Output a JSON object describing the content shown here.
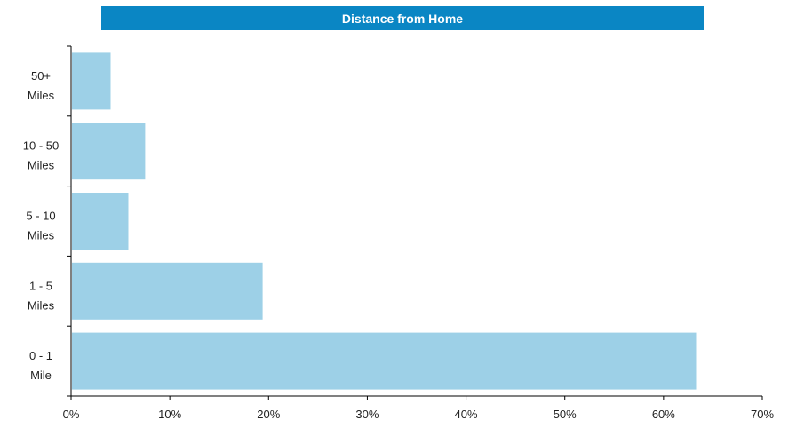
{
  "chart_data": {
    "type": "bar",
    "orientation": "horizontal",
    "title": "Distance from Home",
    "categories": [
      "50+\nMiles",
      "10 - 50\nMiles",
      "5 - 10\nMiles",
      "1 - 5\nMiles",
      "0 - 1\nMile"
    ],
    "values": [
      0.04,
      0.075,
      0.058,
      0.194,
      0.633
    ],
    "xlim": [
      0,
      0.7
    ],
    "xticks": [
      "0%",
      "10%",
      "20%",
      "30%",
      "40%",
      "50%",
      "60%",
      "70%"
    ],
    "xlabel": "",
    "ylabel": "",
    "grid": false,
    "bar_color": "#9dd0e7",
    "title_bar_color": "#0a86c4"
  }
}
